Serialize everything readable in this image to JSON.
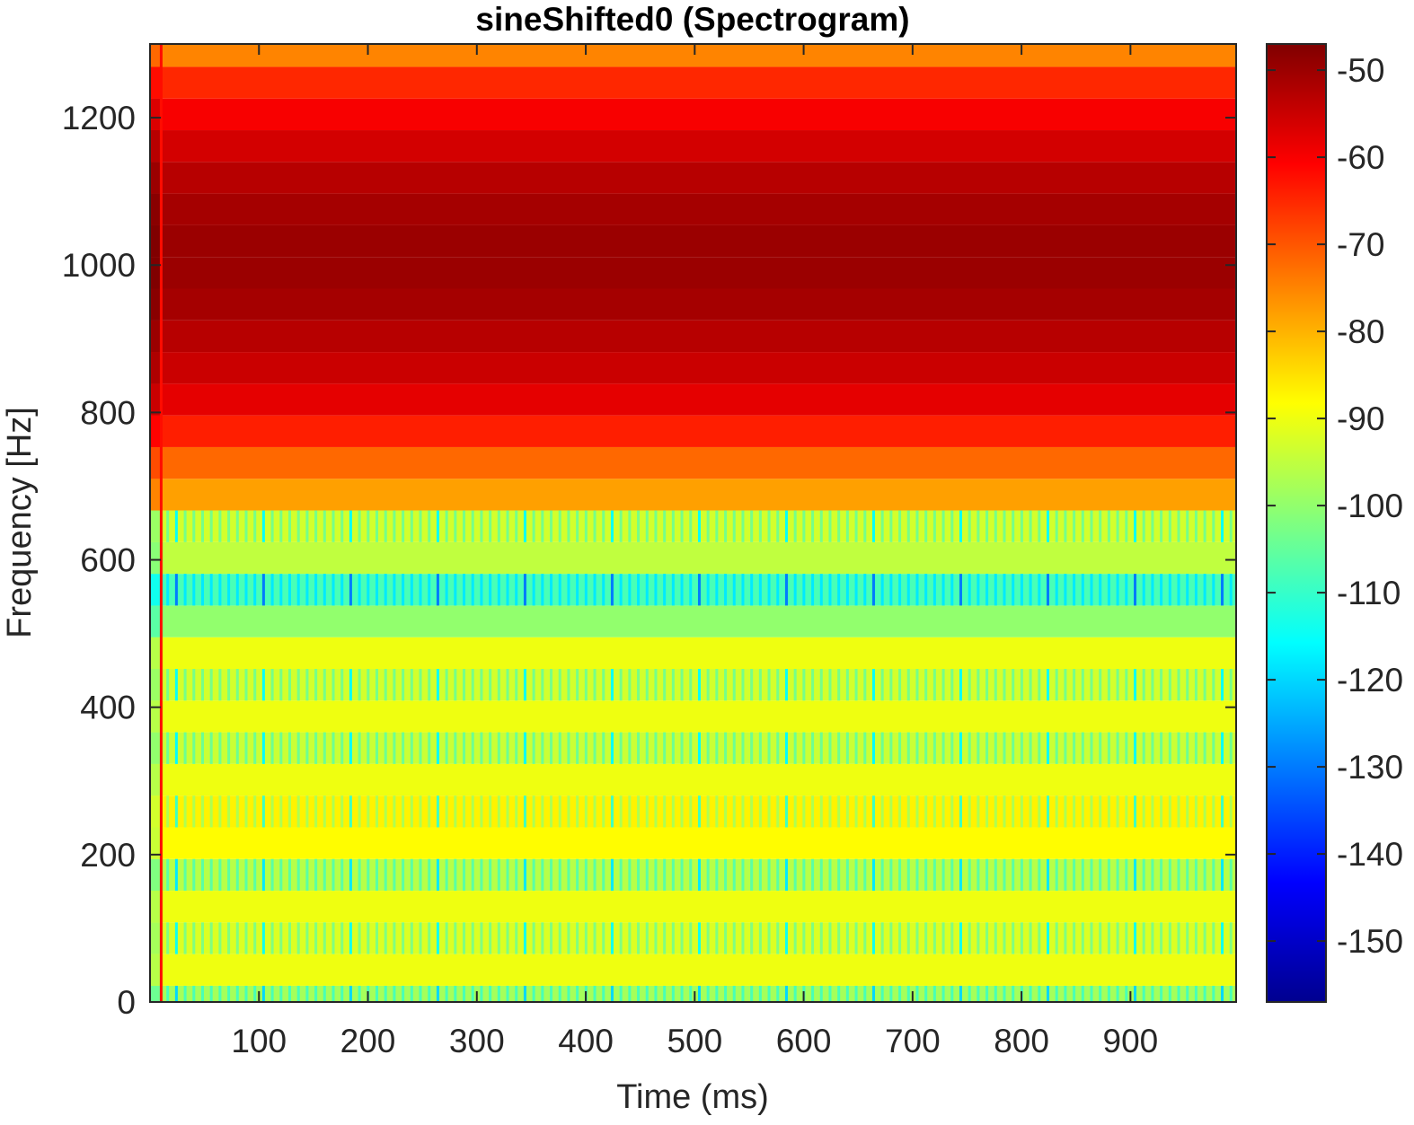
{
  "chart_data": {
    "type": "heatmap",
    "title": "sineShifted0 (Spectrogram)",
    "xlabel": "Time (ms)",
    "ylabel": "Frequency [Hz]",
    "xlim": [
      0,
      997
    ],
    "ylim": [
      0,
      1300
    ],
    "xticks": [
      100,
      200,
      300,
      400,
      500,
      600,
      700,
      800,
      900
    ],
    "yticks": [
      0,
      200,
      400,
      600,
      800,
      1000,
      1200
    ],
    "colormap": "jet",
    "colorbar": {
      "range": [
        -157,
        -47
      ],
      "ticks": [
        -50,
        -60,
        -70,
        -80,
        -90,
        -100,
        -110,
        -120,
        -130,
        -140,
        -150
      ]
    },
    "frequency_bands": [
      {
        "f_low": 0,
        "f_high": 22,
        "level_db": -98,
        "striped": true
      },
      {
        "f_low": 22,
        "f_high": 65,
        "level_db": -90,
        "striped": false
      },
      {
        "f_low": 65,
        "f_high": 108,
        "level_db": -92,
        "striped": true
      },
      {
        "f_low": 108,
        "f_high": 151,
        "level_db": -90,
        "striped": false
      },
      {
        "f_low": 151,
        "f_high": 194,
        "level_db": -96,
        "striped": true
      },
      {
        "f_low": 194,
        "f_high": 237,
        "level_db": -88,
        "striped": false
      },
      {
        "f_low": 237,
        "f_high": 280,
        "level_db": -87,
        "striped": true
      },
      {
        "f_low": 280,
        "f_high": 323,
        "level_db": -90,
        "striped": false
      },
      {
        "f_low": 323,
        "f_high": 366,
        "level_db": -94,
        "striped": true
      },
      {
        "f_low": 366,
        "f_high": 409,
        "level_db": -90,
        "striped": false
      },
      {
        "f_low": 409,
        "f_high": 452,
        "level_db": -93,
        "striped": true
      },
      {
        "f_low": 452,
        "f_high": 495,
        "level_db": -90,
        "striped": false
      },
      {
        "f_low": 495,
        "f_high": 538,
        "level_db": -100,
        "striped": false
      },
      {
        "f_low": 538,
        "f_high": 581,
        "level_db": -108,
        "striped": true
      },
      {
        "f_low": 581,
        "f_high": 624,
        "level_db": -95,
        "striped": false
      },
      {
        "f_low": 624,
        "f_high": 667,
        "level_db": -93,
        "striped": true
      },
      {
        "f_low": 667,
        "f_high": 710,
        "level_db": -78,
        "striped": false
      },
      {
        "f_low": 710,
        "f_high": 753,
        "level_db": -72,
        "striped": false
      },
      {
        "f_low": 753,
        "f_high": 796,
        "level_db": -64,
        "striped": false
      },
      {
        "f_low": 796,
        "f_high": 839,
        "level_db": -58,
        "striped": false
      },
      {
        "f_low": 839,
        "f_high": 882,
        "level_db": -55,
        "striped": false
      },
      {
        "f_low": 882,
        "f_high": 925,
        "level_db": -53,
        "striped": false
      },
      {
        "f_low": 925,
        "f_high": 968,
        "level_db": -51,
        "striped": false
      },
      {
        "f_low": 968,
        "f_high": 1011,
        "level_db": -50,
        "striped": false
      },
      {
        "f_low": 1011,
        "f_high": 1054,
        "level_db": -50,
        "striped": false
      },
      {
        "f_low": 1054,
        "f_high": 1097,
        "level_db": -51,
        "striped": false
      },
      {
        "f_low": 1097,
        "f_high": 1140,
        "level_db": -53,
        "striped": false
      },
      {
        "f_low": 1140,
        "f_high": 1183,
        "level_db": -56,
        "striped": false
      },
      {
        "f_low": 1183,
        "f_high": 1226,
        "level_db": -60,
        "striped": false
      },
      {
        "f_low": 1226,
        "f_high": 1269,
        "level_db": -65,
        "striped": false
      },
      {
        "f_low": 1269,
        "f_high": 1300,
        "level_db": -75,
        "striped": false
      }
    ]
  }
}
